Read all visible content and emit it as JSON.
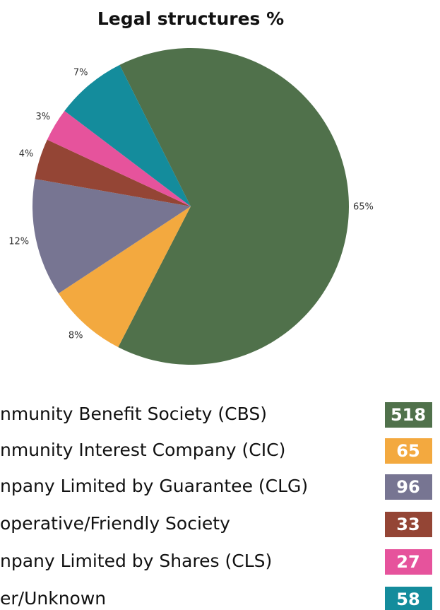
{
  "chart_data": {
    "type": "pie",
    "title": "Legal structures %",
    "categories": [
      "nmunity Benefit Society (CBS)",
      "nmunity Interest Company (CIC)",
      "npany Limited by Guarantee (CLG)",
      "operative/Friendly Society",
      "npany Limited by Shares (CLS)",
      "er/Unknown"
    ],
    "values": [
      65,
      8,
      12,
      4,
      3,
      7
    ],
    "value_labels": [
      "65%",
      "8%",
      "12%",
      "4%",
      "3%",
      "7%"
    ],
    "counts": [
      518,
      65,
      96,
      33,
      27,
      58
    ],
    "colors": [
      "#50714b",
      "#f3a93f",
      "#777592",
      "#944535",
      "#e6539c",
      "#148c9c"
    ]
  }
}
